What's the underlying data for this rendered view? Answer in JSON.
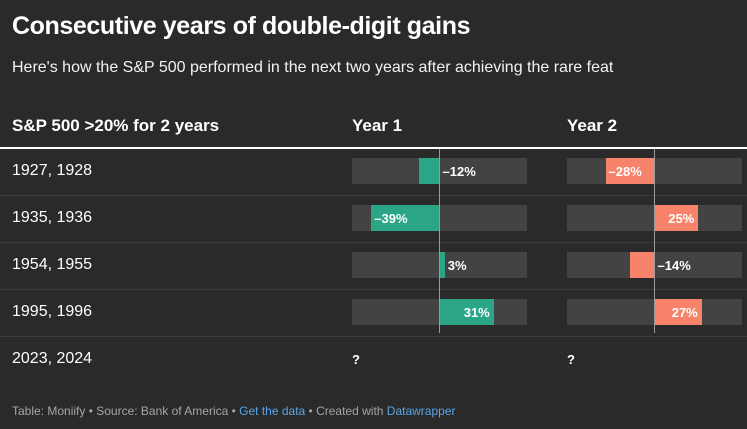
{
  "title": "Consecutive years of double-digit gains",
  "subtitle": "Here's how the S&P 500 performed in the next two years after achieving the rare feat",
  "headers": [
    "S&P 500 >20% for 2 years",
    "Year 1",
    "Year 2"
  ],
  "colors": {
    "positive": "#2aa687",
    "negative": "#f7836a",
    "track": "#434343",
    "background": "#2a2a2a"
  },
  "chart_data": {
    "type": "table",
    "scale": {
      "min": -50,
      "max": 50,
      "unit": "%"
    },
    "columns": [
      "Year 1",
      "Year 2"
    ],
    "rows": [
      {
        "label": "1927, 1928",
        "values": [
          -12,
          -28
        ],
        "labels": [
          "–12%",
          "–28%"
        ]
      },
      {
        "label": "1935, 1936",
        "values": [
          -39,
          25
        ],
        "labels": [
          "–39%",
          "25%"
        ]
      },
      {
        "label": "1954, 1955",
        "values": [
          3,
          -14
        ],
        "labels": [
          "3%",
          "–14%"
        ]
      },
      {
        "label": "1995, 1996",
        "values": [
          31,
          27
        ],
        "labels": [
          "31%",
          "27%"
        ]
      },
      {
        "label": "2023, 2024",
        "values": [
          null,
          null
        ],
        "labels": [
          "?",
          "?"
        ]
      }
    ]
  },
  "footer": {
    "source": "Table: Moniify • Source: Bank of America • ",
    "link1": "Get the data",
    "middle": " • Created with ",
    "link2": "Datawrapper"
  }
}
